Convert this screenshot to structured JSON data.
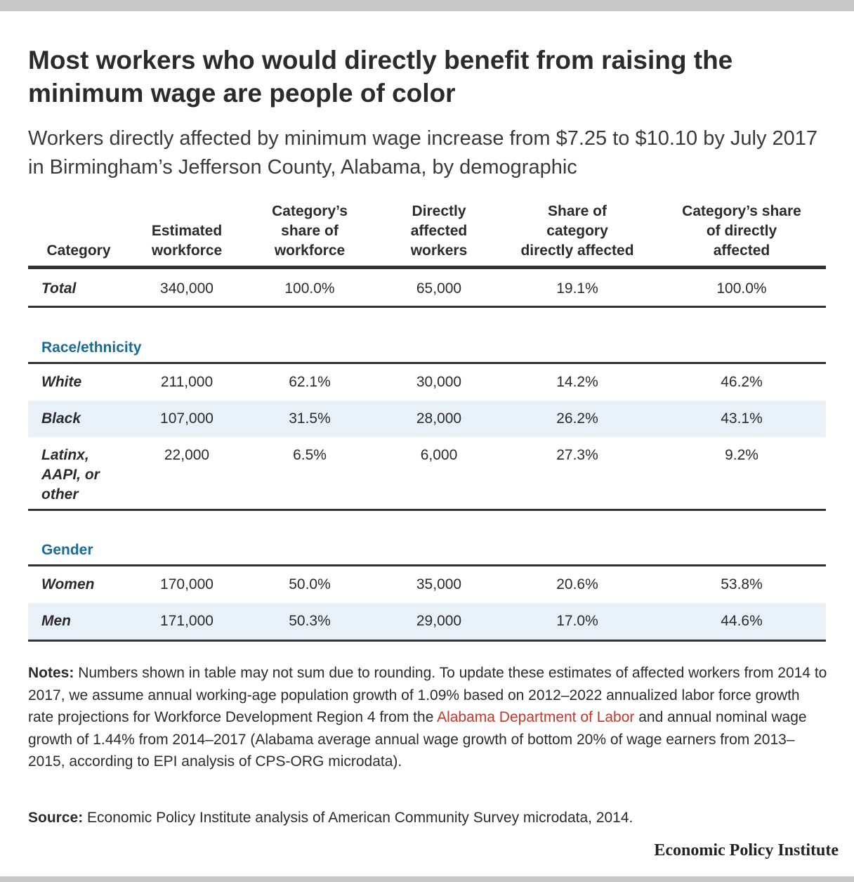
{
  "title": "Most workers who would directly benefit from raising the minimum wage are people of color",
  "subtitle": "Workers directly affected by minimum wage increase from $7.25 to $10.10 by July 2017 in Birmingham’s Jefferson County, Alabama, by demographic",
  "colors": {
    "accent_blue": "#1a6a96",
    "row_shade": "#e8f0f8",
    "rule_dark": "#333333",
    "link_red": "#c0392b"
  },
  "chart_data": {
    "type": "table",
    "columns": [
      [
        "Category"
      ],
      [
        "Estimated",
        "workforce"
      ],
      [
        "Category’s",
        "share of",
        "workforce"
      ],
      [
        "Directly",
        "affected",
        "workers"
      ],
      [
        "Share of",
        "category",
        "directly affected"
      ],
      [
        "Category’s share",
        "of directly",
        "affected"
      ]
    ],
    "total": {
      "label": "Total",
      "values": [
        "340,000",
        "100.0%",
        "65,000",
        "19.1%",
        "100.0%"
      ]
    },
    "groups": [
      {
        "name": "Race/ethnicity",
        "rows": [
          {
            "label": "White",
            "values": [
              "211,000",
              "62.1%",
              "30,000",
              "14.2%",
              "46.2%"
            ]
          },
          {
            "label": "Black",
            "values": [
              "107,000",
              "31.5%",
              "28,000",
              "26.2%",
              "43.1%"
            ]
          },
          {
            "label": "Latinx, AAPI, or other",
            "label_lines": [
              "Latinx,",
              "AAPI, or",
              "other"
            ],
            "values": [
              "22,000",
              "6.5%",
              "6,000",
              "27.3%",
              "9.2%"
            ]
          }
        ]
      },
      {
        "name": "Gender",
        "rows": [
          {
            "label": "Women",
            "values": [
              "170,000",
              "50.0%",
              "35,000",
              "20.6%",
              "53.8%"
            ]
          },
          {
            "label": "Men",
            "values": [
              "171,000",
              "50.3%",
              "29,000",
              "17.0%",
              "44.6%"
            ]
          }
        ]
      }
    ]
  },
  "notes": {
    "label": "Notes:",
    "text_before_link": "Numbers shown in table may not sum due to rounding. To update these estimates of affected workers from 2014 to 2017, we assume annual working-age population growth of 1.09% based on 2012–2022 annualized labor force growth rate projections for Workforce Development Region 4 from the",
    "link_text": "Alabama Department of Labor",
    "text_after_link": "and annual nominal wage growth of 1.44% from 2014–2017 (Alabama average annual wage growth of bottom 20% of wage earners from 2013–2015, according to EPI analysis of CPS-ORG microdata)."
  },
  "source": {
    "label": "Source:",
    "text": "Economic Policy Institute analysis of American Community Survey microdata, 2014."
  },
  "brand": "Economic Policy Institute"
}
